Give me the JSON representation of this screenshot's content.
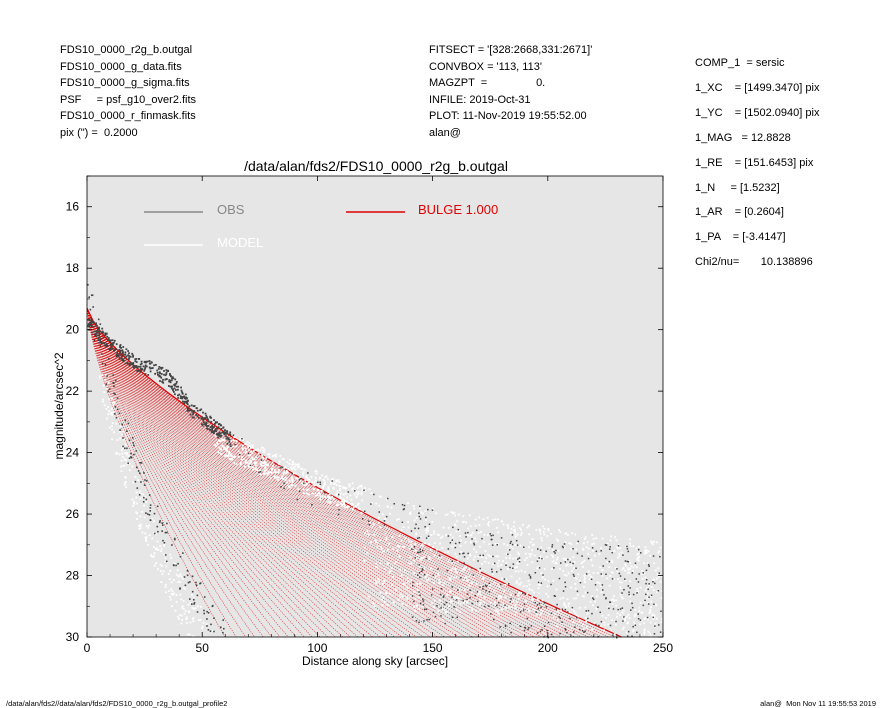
{
  "header_left": [
    "FDS10_0000_r2g_b.outgal",
    "FDS10_0000_g_data.fits",
    "FDS10_0000_g_sigma.fits",
    "PSF     = psf_g10_over2.fits",
    "FDS10_0000_r_finmask.fits",
    "pix (\") =  0.2000"
  ],
  "header_mid": [
    "FITSECT = '[328:2668,331:2671]'",
    "CONVBOX = '113, 113'",
    "MAGZPT  =                0.",
    "INFILE: 2019-Oct-31",
    "PLOT: 11-Nov-2019 19:55:52.00",
    "alan@"
  ],
  "header_right": [
    "COMP_1  = sersic",
    "1_XC    = [1499.3470] pix",
    "1_YC    = [1502.0940] pix",
    "1_MAG   = 12.8828",
    "1_RE    = [151.6453] pix",
    "1_N     = [1.5232]",
    "1_AR    = [0.2604]",
    "1_PA    = [-3.4147]",
    "",
    "Chi2/nu=       10.138896"
  ],
  "footer": {
    "left": "/data/alan/fds2//data/alan/fds2/FDS10_0000_r2g_b.outgal_profile2",
    "right": "alan@  Mon Nov 11 19:55:53 2019"
  },
  "colors": {
    "plot_background": "#e6e6e6",
    "obs": "#444444",
    "obs_legend": "#888888",
    "model": "#ffffff",
    "bulge": "#e00000"
  },
  "chart_data": {
    "type": "scatter",
    "title": "/data/alan/fds2/FDS10_0000_r2g_b.outgal",
    "xlabel": "Distance along sky [arcsec]",
    "ylabel": "magnitude/arcsec^2",
    "xlim": [
      0,
      250
    ],
    "ylim": [
      30,
      15
    ],
    "y_inverted": true,
    "xticks": [
      0,
      50,
      100,
      150,
      200,
      250
    ],
    "yticks": [
      16,
      18,
      20,
      22,
      24,
      26,
      28,
      30
    ],
    "grid": false,
    "legend": [
      {
        "name": "OBS",
        "color": "#888888"
      },
      {
        "name": "MODEL",
        "color": "#ffffff"
      },
      {
        "name": "BULGE  1.000",
        "color": "#e00000"
      }
    ],
    "series": [
      {
        "name": "OBS",
        "kind": "points",
        "description_values": "dark scatter points",
        "envelope": {
          "inner_edge": [
            [
              0,
              18.2
            ],
            [
              1,
              19.0
            ],
            [
              5,
              20.0
            ],
            [
              10,
              21.5
            ],
            [
              20,
              24.0
            ],
            [
              30,
              26.0
            ],
            [
              40,
              27.5
            ],
            [
              50,
              28.7
            ],
            [
              60,
              30.0
            ]
          ],
          "upper_band": [
            [
              0,
              19.5
            ],
            [
              10,
              20.2
            ],
            [
              20,
              20.8
            ],
            [
              28,
              21.0
            ],
            [
              35,
              21.3
            ],
            [
              45,
              22.3
            ],
            [
              55,
              22.9
            ],
            [
              62,
              23.3
            ]
          ],
          "outer_tail": [
            [
              150,
              26.3
            ],
            [
              200,
              26.8
            ],
            [
              250,
              27.0
            ]
          ]
        }
      },
      {
        "name": "MODEL",
        "kind": "points",
        "envelope": {
          "upper": [
            [
              60,
              23.3
            ],
            [
              100,
              24.6
            ],
            [
              150,
              25.8
            ],
            [
              200,
              26.4
            ],
            [
              250,
              26.9
            ]
          ],
          "lower": [
            [
              50,
              29.5
            ],
            [
              100,
              30
            ],
            [
              200,
              30
            ],
            [
              250,
              30
            ]
          ]
        }
      },
      {
        "name": "BULGE  1.000",
        "kind": "profile_fan",
        "sersic_n": 1.5232,
        "mu0": 19.3,
        "outer_end": [
          232,
          30
        ],
        "inner_end": [
          60,
          30
        ]
      }
    ]
  }
}
